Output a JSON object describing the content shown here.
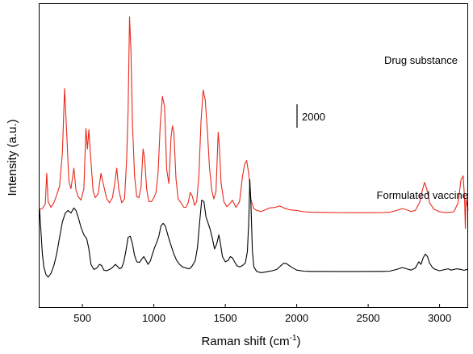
{
  "chart_data": {
    "type": "line",
    "xlabel": "Raman shift (cm",
    "xlabel_sup": "-1",
    "xlabel_tail": ")",
    "ylabel": "Intensity (a.u.)",
    "xlim": [
      200,
      3200
    ],
    "x_ticks": [
      500,
      1000,
      1500,
      2000,
      2500,
      3000
    ],
    "y_ticks_shown": false,
    "grid": false,
    "scale_bar": {
      "label": "2000",
      "value": 2000
    },
    "series": [
      {
        "name": "Drug substance",
        "color": "#e8291c",
        "points": [
          [
            200,
            4800
          ],
          [
            220,
            4850
          ],
          [
            240,
            5200
          ],
          [
            250,
            7600
          ],
          [
            260,
            5400
          ],
          [
            280,
            4950
          ],
          [
            300,
            5300
          ],
          [
            320,
            5900
          ],
          [
            340,
            6600
          ],
          [
            360,
            9200
          ],
          [
            375,
            14200
          ],
          [
            390,
            10800
          ],
          [
            405,
            7000
          ],
          [
            420,
            6400
          ],
          [
            440,
            8000
          ],
          [
            455,
            6300
          ],
          [
            470,
            5800
          ],
          [
            490,
            5500
          ],
          [
            510,
            6400
          ],
          [
            525,
            11100
          ],
          [
            535,
            9500
          ],
          [
            545,
            11000
          ],
          [
            560,
            8500
          ],
          [
            575,
            6200
          ],
          [
            590,
            5700
          ],
          [
            610,
            6000
          ],
          [
            630,
            7600
          ],
          [
            650,
            6600
          ],
          [
            670,
            5600
          ],
          [
            690,
            5300
          ],
          [
            710,
            5700
          ],
          [
            725,
            6700
          ],
          [
            740,
            8000
          ],
          [
            755,
            6300
          ],
          [
            775,
            5300
          ],
          [
            795,
            5600
          ],
          [
            810,
            8800
          ],
          [
            820,
            12500
          ],
          [
            830,
            19800
          ],
          [
            840,
            17000
          ],
          [
            850,
            11500
          ],
          [
            865,
            7400
          ],
          [
            880,
            5800
          ],
          [
            895,
            5700
          ],
          [
            910,
            6500
          ],
          [
            925,
            9500
          ],
          [
            935,
            8800
          ],
          [
            950,
            6300
          ],
          [
            965,
            5400
          ],
          [
            985,
            5400
          ],
          [
            1000,
            5700
          ],
          [
            1015,
            6100
          ],
          [
            1030,
            7700
          ],
          [
            1045,
            11500
          ],
          [
            1060,
            13600
          ],
          [
            1075,
            12800
          ],
          [
            1090,
            7900
          ],
          [
            1105,
            6800
          ],
          [
            1120,
            10300
          ],
          [
            1130,
            11300
          ],
          [
            1140,
            10800
          ],
          [
            1155,
            7200
          ],
          [
            1170,
            5600
          ],
          [
            1190,
            5300
          ],
          [
            1210,
            4950
          ],
          [
            1225,
            4950
          ],
          [
            1240,
            5300
          ],
          [
            1255,
            6100
          ],
          [
            1270,
            5800
          ],
          [
            1285,
            5100
          ],
          [
            1300,
            5400
          ],
          [
            1315,
            7400
          ],
          [
            1330,
            11600
          ],
          [
            1345,
            14100
          ],
          [
            1360,
            13300
          ],
          [
            1375,
            10800
          ],
          [
            1390,
            8000
          ],
          [
            1405,
            6300
          ],
          [
            1420,
            5600
          ],
          [
            1435,
            6200
          ],
          [
            1450,
            10800
          ],
          [
            1460,
            9500
          ],
          [
            1470,
            6900
          ],
          [
            1490,
            5400
          ],
          [
            1510,
            5000
          ],
          [
            1530,
            5200
          ],
          [
            1550,
            5500
          ],
          [
            1575,
            4950
          ],
          [
            1600,
            5400
          ],
          [
            1620,
            7300
          ],
          [
            1635,
            8300
          ],
          [
            1650,
            8600
          ],
          [
            1665,
            7500
          ],
          [
            1680,
            5500
          ],
          [
            1700,
            4850
          ],
          [
            1720,
            4700
          ],
          [
            1750,
            4620
          ],
          [
            1780,
            4750
          ],
          [
            1810,
            4900
          ],
          [
            1850,
            4950
          ],
          [
            1880,
            5050
          ],
          [
            1910,
            4900
          ],
          [
            1950,
            4750
          ],
          [
            2000,
            4700
          ],
          [
            2050,
            4600
          ],
          [
            2100,
            4560
          ],
          [
            2200,
            4550
          ],
          [
            2300,
            4540
          ],
          [
            2400,
            4530
          ],
          [
            2500,
            4530
          ],
          [
            2600,
            4540
          ],
          [
            2650,
            4560
          ],
          [
            2700,
            4700
          ],
          [
            2740,
            4850
          ],
          [
            2770,
            4750
          ],
          [
            2800,
            4620
          ],
          [
            2830,
            4700
          ],
          [
            2860,
            5300
          ],
          [
            2880,
            6300
          ],
          [
            2895,
            6900
          ],
          [
            2910,
            6400
          ],
          [
            2930,
            5300
          ],
          [
            2960,
            4800
          ],
          [
            3000,
            4600
          ],
          [
            3050,
            4530
          ],
          [
            3100,
            4600
          ],
          [
            3130,
            5300
          ],
          [
            3150,
            7100
          ],
          [
            3165,
            7400
          ],
          [
            3175,
            5600
          ],
          [
            3180,
            3300
          ],
          [
            3185,
            5600
          ],
          [
            3200,
            4700
          ]
        ]
      },
      {
        "name": "Formulated vaccine",
        "color": "#000000",
        "points": [
          [
            200,
            4800
          ],
          [
            210,
            3000
          ],
          [
            220,
            1300
          ],
          [
            230,
            300
          ],
          [
            245,
            -300
          ],
          [
            260,
            -500
          ],
          [
            280,
            -200
          ],
          [
            300,
            400
          ],
          [
            320,
            1300
          ],
          [
            340,
            2600
          ],
          [
            360,
            3800
          ],
          [
            380,
            4500
          ],
          [
            400,
            4700
          ],
          [
            420,
            4500
          ],
          [
            440,
            4900
          ],
          [
            455,
            4700
          ],
          [
            470,
            4200
          ],
          [
            490,
            3400
          ],
          [
            510,
            2800
          ],
          [
            530,
            2500
          ],
          [
            545,
            1700
          ],
          [
            560,
            500
          ],
          [
            580,
            100
          ],
          [
            600,
            200
          ],
          [
            620,
            500
          ],
          [
            635,
            400
          ],
          [
            650,
            50
          ],
          [
            670,
            0
          ],
          [
            690,
            100
          ],
          [
            710,
            250
          ],
          [
            730,
            500
          ],
          [
            745,
            350
          ],
          [
            760,
            150
          ],
          [
            775,
            250
          ],
          [
            790,
            700
          ],
          [
            805,
            1600
          ],
          [
            820,
            2600
          ],
          [
            835,
            2700
          ],
          [
            850,
            2100
          ],
          [
            865,
            1200
          ],
          [
            880,
            700
          ],
          [
            900,
            650
          ],
          [
            915,
            900
          ],
          [
            930,
            1100
          ],
          [
            945,
            800
          ],
          [
            960,
            500
          ],
          [
            975,
            750
          ],
          [
            990,
            1300
          ],
          [
            1005,
            1800
          ],
          [
            1020,
            2200
          ],
          [
            1035,
            2700
          ],
          [
            1050,
            3500
          ],
          [
            1065,
            3700
          ],
          [
            1080,
            3500
          ],
          [
            1100,
            2700
          ],
          [
            1120,
            2000
          ],
          [
            1140,
            1300
          ],
          [
            1160,
            800
          ],
          [
            1180,
            500
          ],
          [
            1200,
            300
          ],
          [
            1215,
            250
          ],
          [
            1230,
            200
          ],
          [
            1245,
            150
          ],
          [
            1260,
            250
          ],
          [
            1275,
            500
          ],
          [
            1290,
            800
          ],
          [
            1305,
            1800
          ],
          [
            1320,
            3700
          ],
          [
            1335,
            5500
          ],
          [
            1350,
            5400
          ],
          [
            1365,
            4200
          ],
          [
            1380,
            3700
          ],
          [
            1395,
            3200
          ],
          [
            1410,
            2500
          ],
          [
            1425,
            1700
          ],
          [
            1440,
            2100
          ],
          [
            1455,
            2800
          ],
          [
            1465,
            2200
          ],
          [
            1480,
            1100
          ],
          [
            1500,
            700
          ],
          [
            1520,
            800
          ],
          [
            1535,
            1100
          ],
          [
            1550,
            1000
          ],
          [
            1565,
            700
          ],
          [
            1580,
            400
          ],
          [
            1600,
            300
          ],
          [
            1620,
            400
          ],
          [
            1640,
            600
          ],
          [
            1655,
            1500
          ],
          [
            1665,
            4000
          ],
          [
            1672,
            7100
          ],
          [
            1680,
            5000
          ],
          [
            1690,
            1500
          ],
          [
            1700,
            300
          ],
          [
            1720,
            -50
          ],
          [
            1750,
            -150
          ],
          [
            1780,
            -100
          ],
          [
            1800,
            -50
          ],
          [
            1830,
            0
          ],
          [
            1860,
            100
          ],
          [
            1890,
            400
          ],
          [
            1910,
            600
          ],
          [
            1930,
            550
          ],
          [
            1960,
            300
          ],
          [
            2000,
            50
          ],
          [
            2050,
            -30
          ],
          [
            2100,
            -50
          ],
          [
            2200,
            -50
          ],
          [
            2300,
            -60
          ],
          [
            2400,
            -60
          ],
          [
            2500,
            -50
          ],
          [
            2600,
            -50
          ],
          [
            2650,
            -30
          ],
          [
            2700,
            100
          ],
          [
            2740,
            250
          ],
          [
            2770,
            150
          ],
          [
            2800,
            50
          ],
          [
            2830,
            200
          ],
          [
            2855,
            700
          ],
          [
            2870,
            500
          ],
          [
            2885,
            1000
          ],
          [
            2900,
            1300
          ],
          [
            2915,
            1100
          ],
          [
            2930,
            600
          ],
          [
            2950,
            250
          ],
          [
            2970,
            100
          ],
          [
            3000,
            0
          ],
          [
            3040,
            100
          ],
          [
            3060,
            150
          ],
          [
            3080,
            50
          ],
          [
            3120,
            150
          ],
          [
            3150,
            100
          ],
          [
            3170,
            30
          ],
          [
            3185,
            80
          ],
          [
            3200,
            100
          ]
        ]
      }
    ]
  }
}
